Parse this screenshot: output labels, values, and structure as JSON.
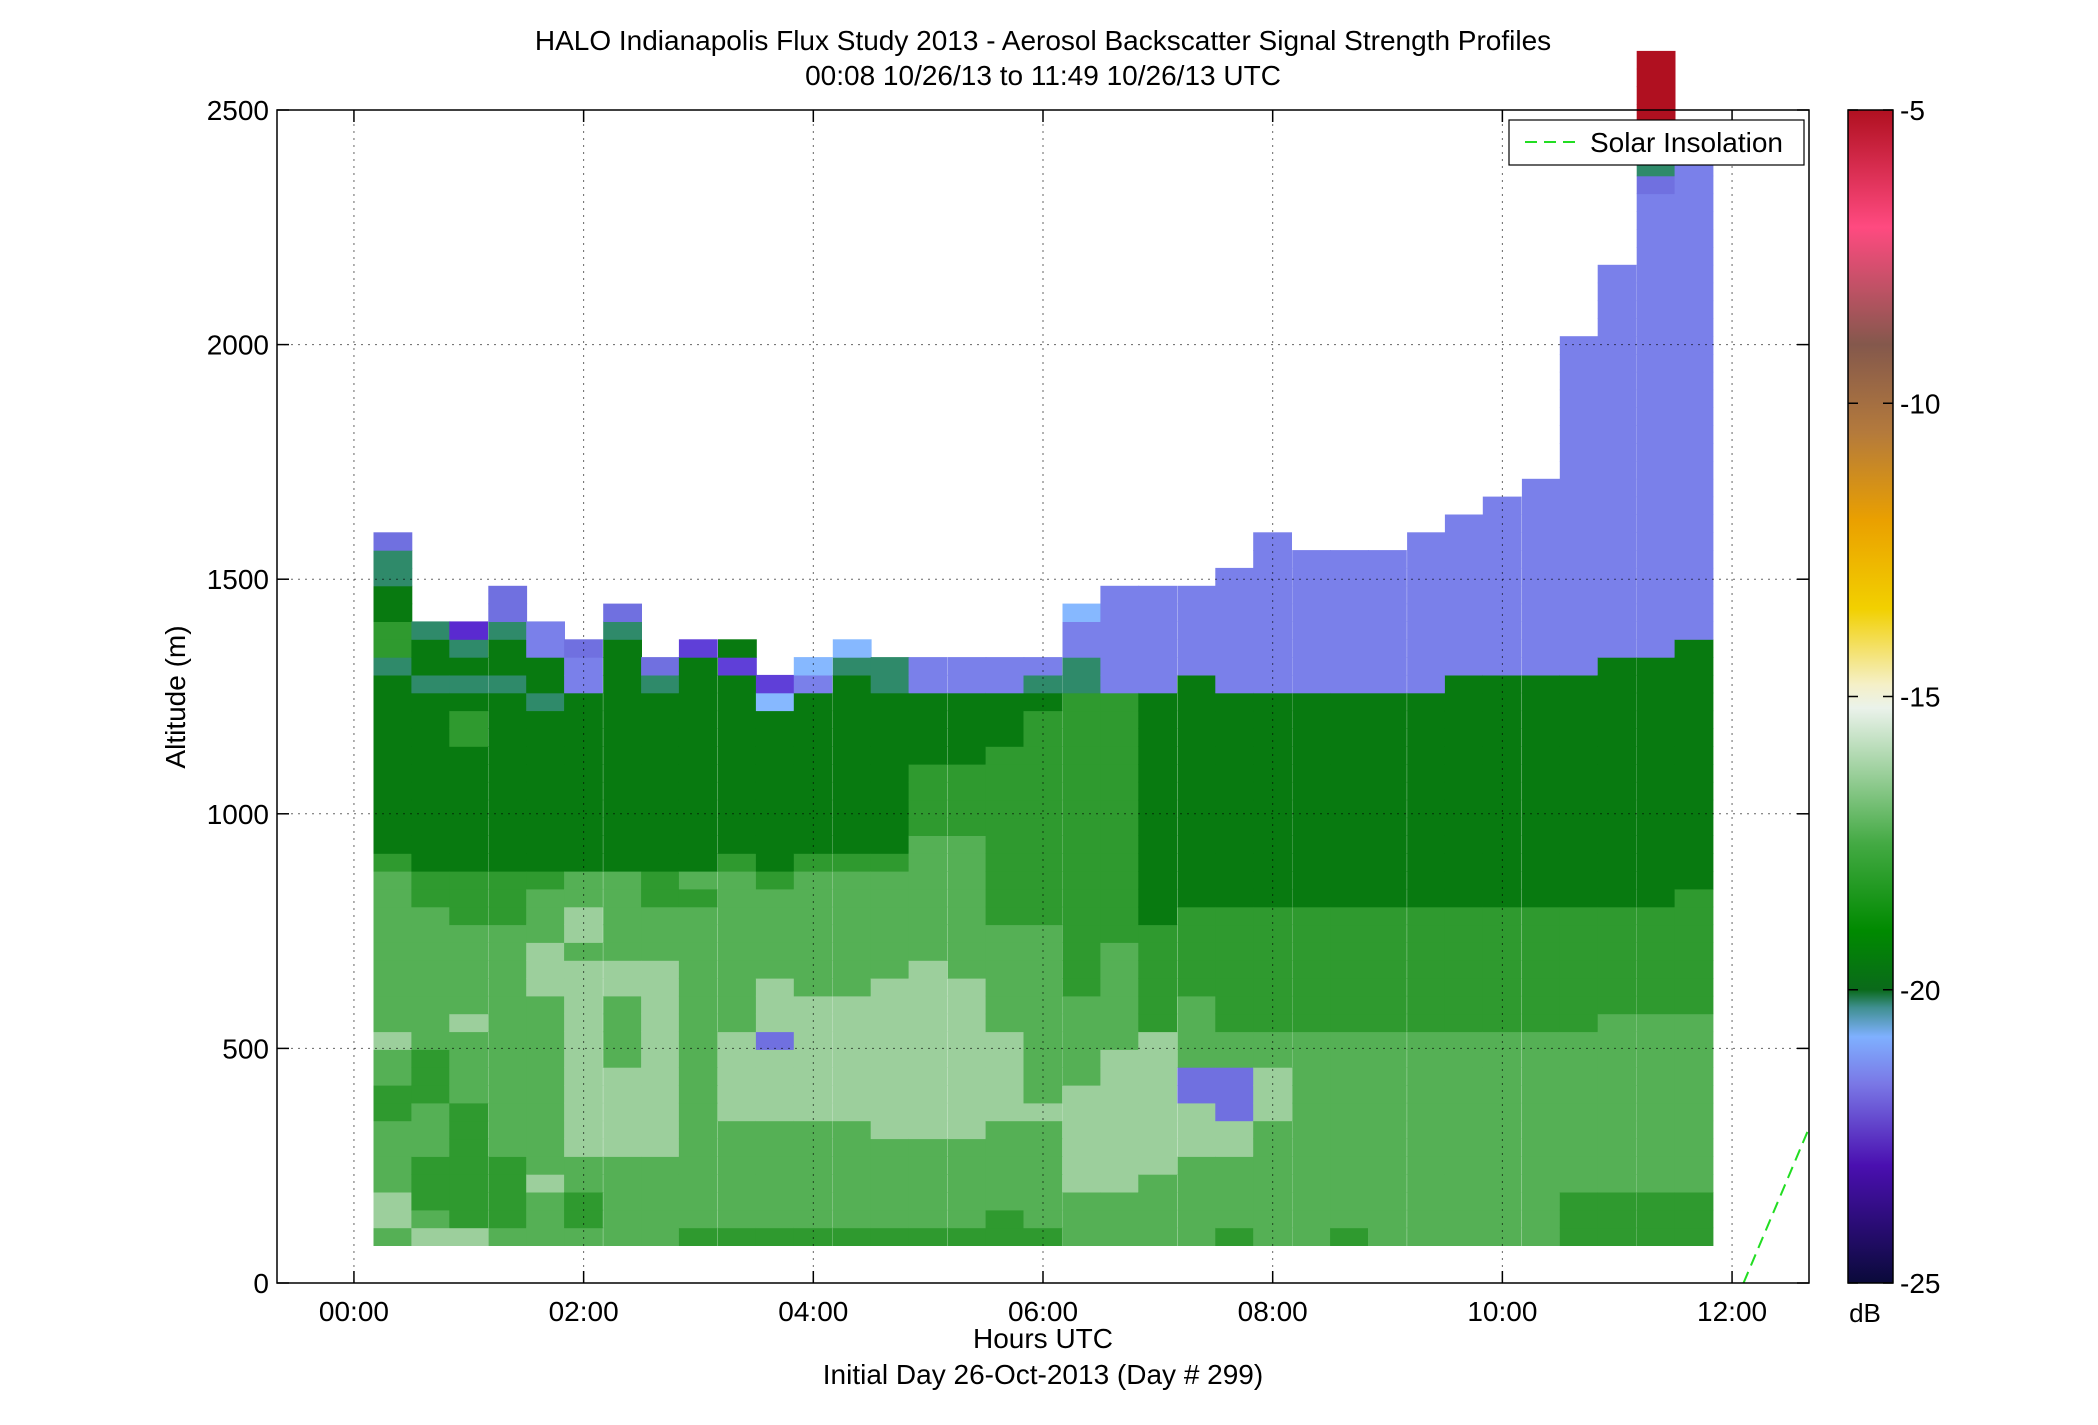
{
  "chart_data": {
    "type": "heatmap",
    "title": "HALO Indianapolis Flux Study 2013 - Aerosol Backscatter Signal Strength Profiles",
    "subtitle": "00:08 10/26/13 to 11:49 10/26/13  UTC",
    "xlabel": "Hours UTC",
    "xlabel2": "Initial Day 26-Oct-2013 (Day # 299)",
    "ylabel": "Altitude (m)",
    "xlim": [
      -0.67,
      12.67
    ],
    "ylim": [
      0,
      2500
    ],
    "x_ticks": [
      0,
      2,
      4,
      6,
      8,
      10,
      12
    ],
    "x_tick_labels": [
      "00:00",
      "02:00",
      "04:00",
      "06:00",
      "08:00",
      "10:00",
      "12:00"
    ],
    "y_ticks": [
      0,
      500,
      1000,
      1500,
      2000,
      2500
    ],
    "y_tick_labels": [
      "0",
      "500",
      "1000",
      "1500",
      "2000",
      "2500"
    ],
    "grid": true,
    "colorbar": {
      "label": "dB",
      "range": [
        -25,
        -5
      ],
      "ticks": [
        -25,
        -20,
        -15,
        -10,
        -5
      ],
      "tick_labels": [
        "-25",
        "-20",
        "-15",
        "-10",
        "-5"
      ],
      "stops": [
        {
          "v": -25,
          "c": "#0a0a3a"
        },
        {
          "v": -23,
          "c": "#4a0fb0"
        },
        {
          "v": -21.6,
          "c": "#7a78e6"
        },
        {
          "v": -20.8,
          "c": "#7fb0ff"
        },
        {
          "v": -20.3,
          "c": "#3f8f8f"
        },
        {
          "v": -20,
          "c": "#0a6a1a"
        },
        {
          "v": -19,
          "c": "#008a00"
        },
        {
          "v": -17.5,
          "c": "#44aa44"
        },
        {
          "v": -16.3,
          "c": "#9cd09c"
        },
        {
          "v": -15.2,
          "c": "#eaf2ea"
        },
        {
          "v": -14.8,
          "c": "#f5f0c8"
        },
        {
          "v": -13.5,
          "c": "#f2d000"
        },
        {
          "v": -12,
          "c": "#eaa000"
        },
        {
          "v": -10.5,
          "c": "#b47a3c"
        },
        {
          "v": -9,
          "c": "#84584c"
        },
        {
          "v": -7,
          "c": "#ff4a80"
        },
        {
          "v": -5,
          "c": "#b01020"
        }
      ]
    },
    "legend": {
      "entries": [
        "Solar Insolation"
      ],
      "placement": "top-right",
      "color": "#22dd22",
      "style": "dashed"
    },
    "solar_insolation": {
      "x": [
        12.1,
        12.67
      ],
      "y": [
        0,
        330
      ]
    },
    "cell": {
      "dx_hours": 0.333,
      "dz_m": 38
    },
    "profiles": [
      {
        "t": 0.17,
        "cells": "76677778877677777777789999999999a8899aa5"
      },
      {
        "t": 0.5,
        "cells": "6788877788877777777889999999999a99a"
      },
      {
        "t": 0.83,
        "cells": "6888888877776777778889999999889a9a3"
      },
      {
        "t": 1.17,
        "cells": "7888877777777777778889999999999a99a55"
      },
      {
        "t": 1.5,
        "cells": "777677777777776667778999999999a99bb"
      },
      {
        "t": 1.83,
        "cells": "7887766666666666766779999999999bb5"
      },
      {
        "t": 2.17,
        "cells": "7777766666777766777779999999999999a5"
      },
      {
        "t": 2.5,
        "cells": "7777766666666666777889999999999a5"
      },
      {
        "t": 2.83,
        "cells": "8777777777777777777879999999999994"
      },
      {
        "t": 3.17,
        "cells": "8777777666667777777778999999999949"
      },
      {
        "t": 3.5,
        "cells": "877777766665666777778999999999c4"
      },
      {
        "t": 3.83,
        "cells": "8777777666666677777778999999999bc"
      },
      {
        "t": 4.17,
        "cells": "87777776666666777777789999999999ac"
      },
      {
        "t": 4.5,
        "cells": "8777776666666667777778999999999aa"
      },
      {
        "t": 4.83,
        "cells": "8777776666666666777777788889999bb"
      },
      {
        "t": 5.17,
        "cells": "8777776666666667777777788889999bb"
      },
      {
        "t": 5.5,
        "cells": "8877777666667777778888888888999bb"
      },
      {
        "t": 5.83,
        "cells": "8777777677777777778888888888889ab"
      },
      {
        "t": 6.17,
        "cells": "7776666667777788888888888888888aabbc"
      },
      {
        "t": 6.5,
        "cells": "7776666666677777788888888888888bbbbbb"
      },
      {
        "t": 6.83,
        "cells": "7777666666668888889999999999999bbbbbb"
      },
      {
        "t": 7.17,
        "cells": "77777666557777888889999999999999bbbbb"
      },
      {
        "t": 7.5,
        "cells": "8777766555778888888999999999999bbbbbbb"
      },
      {
        "t": 7.83,
        "cells": "7777777666778888888999999999999bbbbbbbbb"
      },
      {
        "t": 8.17,
        "cells": "7777777777778888888999999999999bbbbbbbb"
      },
      {
        "t": 8.5,
        "cells": "8777777777778888888999999999999bbbbbbbb"
      },
      {
        "t": 8.83,
        "cells": "7777777777778888888999999999999bbbbbbbb"
      },
      {
        "t": 9.17,
        "cells": "7777777777778888888999999999999bbbbbbbbb"
      },
      {
        "t": 9.5,
        "cells": "77777777777788888889999999999999bbbbbbbbb"
      },
      {
        "t": 9.83,
        "cells": "77777777777788888889999999999999bbbbbbbbbb"
      },
      {
        "t": 10.17,
        "cells": "77777777777788888889999999999999bbbbbbbbbbb"
      },
      {
        "t": 10.5,
        "cells": "88877777777788888889999999999999bbbbbbbbbbbbbbbbbbb"
      },
      {
        "t": 10.83,
        "cells": "888777777777788888899999999999999bbbbbbbbbbbbbbbbbbbbbb"
      },
      {
        "t": 11.17,
        "cells": "888777777777788888899999999999999bbbbbbbbbbbbbbbbbbbbbbbbbb5a8hhhhh"
      },
      {
        "t": 11.5,
        "cells": "8887777777777888888899999999999999bbbbbbbbbbbbbbbbbbbbbbbbbbbbb"
      }
    ],
    "notes_cells": "characters 0-h index into colorbar classes from purple (lowest) to red (highest); profiles start at 80 m with 38 m bins",
    "classes": {
      "3": "#5a2ad0",
      "4": "#5f3fd8",
      "5": "#7070e0",
      "6": "#9ccf9c",
      "7": "#55b055",
      "8": "#2f9a2f",
      "9": "#087a10",
      "a": "#2f8a6a",
      "b": "#7a80ea",
      "c": "#86b8ff",
      "h": "#b01020"
    }
  }
}
